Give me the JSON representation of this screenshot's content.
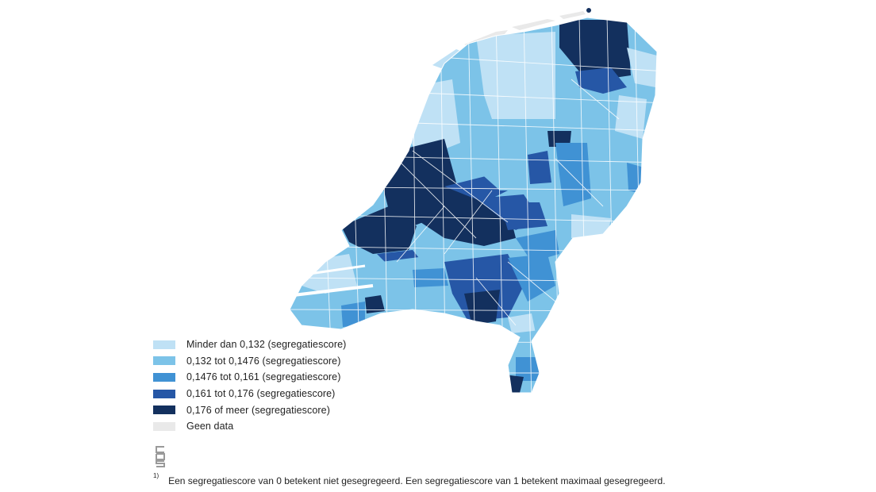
{
  "legend": {
    "items": [
      {
        "label": "Minder dan 0,132 (segregatiescore)",
        "color": "#bfe1f5"
      },
      {
        "label": "0,132 tot 0,1476 (segregatiescore)",
        "color": "#7cc3e8"
      },
      {
        "label": "0,1476 tot 0,161 (segregatiescore)",
        "color": "#4092d4"
      },
      {
        "label": "0,161 tot 0,176 (segregatiescore)",
        "color": "#2657a6"
      },
      {
        "label": "0,176 of meer (segregatiescore)",
        "color": "#13305e"
      },
      {
        "label": "Geen data",
        "color": "#e9e9e9"
      }
    ]
  },
  "footnote": {
    "marker": "1)",
    "text": "Een segregatiescore van 0 betekent niet gesegregeerd. Een segregatiescore van 1 betekent maximaal gesegregeerd."
  },
  "logo": {
    "name": "cbs-logo"
  }
}
